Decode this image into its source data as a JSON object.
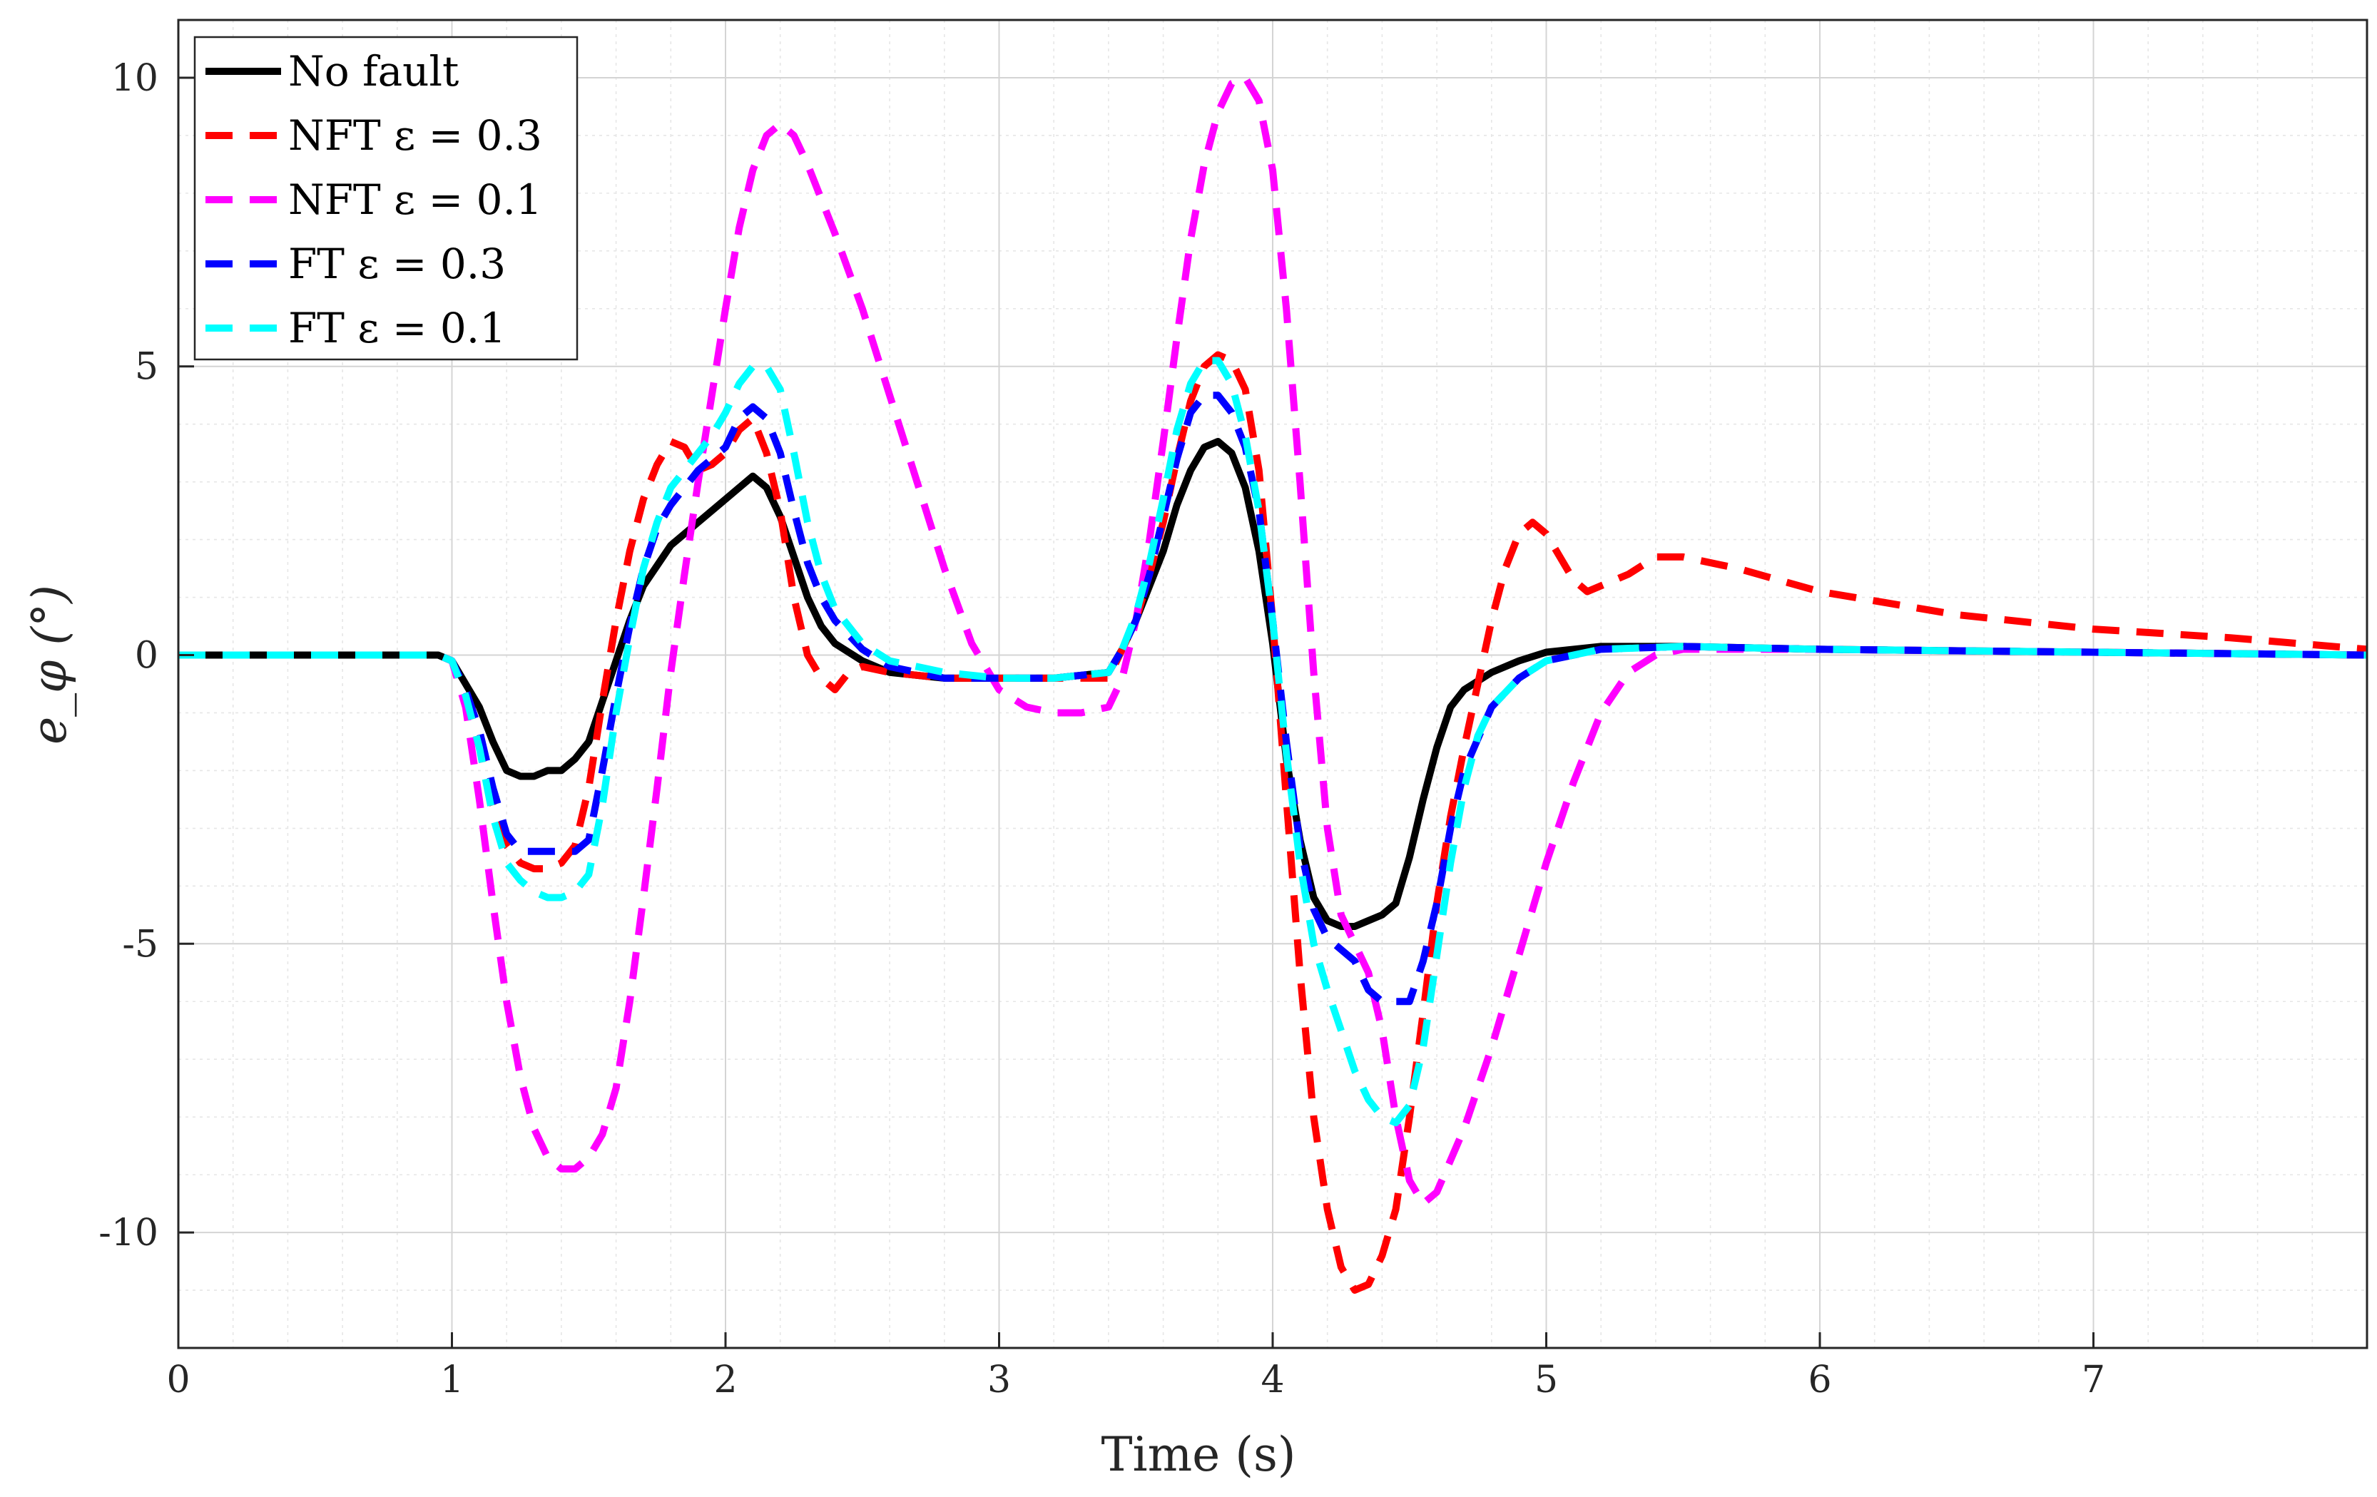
{
  "chart_data": {
    "type": "line",
    "xlabel": "Time (s)",
    "ylabel": "e_φ   (°)",
    "xlim": [
      0,
      8
    ],
    "ylim": [
      -12,
      11
    ],
    "xticks": [
      "0",
      "1",
      "2",
      "3",
      "4",
      "5",
      "6",
      "7"
    ],
    "yticks": [
      "10",
      "5",
      "0",
      "-5",
      "-10"
    ],
    "grid": true,
    "minor_grid": true,
    "legend_position": "top-left",
    "series": [
      {
        "name": "No fault",
        "color": "#000000",
        "style": "solid",
        "x": [
          0,
          0.95,
          1.0,
          1.05,
          1.1,
          1.15,
          1.2,
          1.25,
          1.3,
          1.35,
          1.4,
          1.45,
          1.5,
          1.55,
          1.6,
          1.65,
          1.7,
          1.8,
          1.9,
          2.0,
          2.05,
          2.1,
          2.15,
          2.2,
          2.25,
          2.3,
          2.35,
          2.4,
          2.5,
          2.6,
          2.8,
          3.0,
          3.2,
          3.4,
          3.45,
          3.5,
          3.55,
          3.6,
          3.65,
          3.7,
          3.75,
          3.8,
          3.85,
          3.9,
          3.95,
          4.0,
          4.05,
          4.1,
          4.15,
          4.2,
          4.25,
          4.3,
          4.35,
          4.4,
          4.45,
          4.5,
          4.55,
          4.6,
          4.65,
          4.7,
          4.8,
          4.9,
          5.0,
          5.2,
          5.5,
          6.0,
          7.0,
          8.0
        ],
        "y": [
          0,
          0,
          -0.1,
          -0.5,
          -0.9,
          -1.5,
          -2.0,
          -2.1,
          -2.1,
          -2.0,
          -2.0,
          -1.8,
          -1.5,
          -0.8,
          -0.1,
          0.6,
          1.2,
          1.9,
          2.3,
          2.7,
          2.9,
          3.1,
          2.9,
          2.4,
          1.7,
          1.0,
          0.5,
          0.2,
          -0.1,
          -0.3,
          -0.4,
          -0.4,
          -0.4,
          -0.3,
          0.1,
          0.6,
          1.2,
          1.8,
          2.6,
          3.2,
          3.6,
          3.7,
          3.5,
          2.9,
          1.8,
          0.2,
          -1.8,
          -3.2,
          -4.2,
          -4.6,
          -4.7,
          -4.7,
          -4.6,
          -4.5,
          -4.3,
          -3.5,
          -2.5,
          -1.6,
          -0.9,
          -0.6,
          -0.3,
          -0.1,
          0.05,
          0.15,
          0.15,
          0.1,
          0.05,
          0.0
        ]
      },
      {
        "name": "NFT ε = 0.3",
        "color": "#ff0000",
        "style": "dashed",
        "x": [
          0,
          0.95,
          1.0,
          1.05,
          1.1,
          1.15,
          1.2,
          1.25,
          1.3,
          1.35,
          1.4,
          1.45,
          1.5,
          1.55,
          1.6,
          1.65,
          1.7,
          1.75,
          1.8,
          1.85,
          1.9,
          1.95,
          2.0,
          2.05,
          2.1,
          2.15,
          2.2,
          2.25,
          2.3,
          2.35,
          2.4,
          2.45,
          2.5,
          2.6,
          2.8,
          3.0,
          3.2,
          3.4,
          3.45,
          3.5,
          3.55,
          3.6,
          3.65,
          3.7,
          3.75,
          3.8,
          3.85,
          3.9,
          3.95,
          4.0,
          4.05,
          4.1,
          4.15,
          4.2,
          4.25,
          4.3,
          4.35,
          4.4,
          4.45,
          4.5,
          4.55,
          4.6,
          4.65,
          4.7,
          4.75,
          4.8,
          4.85,
          4.9,
          4.95,
          5.0,
          5.05,
          5.1,
          5.15,
          5.2,
          5.3,
          5.4,
          5.5,
          5.7,
          6.0,
          6.5,
          7.0,
          7.5,
          8.0
        ],
        "y": [
          0,
          0,
          -0.1,
          -0.7,
          -1.6,
          -2.6,
          -3.3,
          -3.6,
          -3.7,
          -3.7,
          -3.6,
          -3.3,
          -2.3,
          -0.8,
          0.6,
          1.8,
          2.7,
          3.3,
          3.7,
          3.6,
          3.2,
          3.3,
          3.5,
          3.9,
          4.1,
          3.5,
          2.5,
          1.0,
          0.0,
          -0.4,
          -0.6,
          -0.3,
          -0.2,
          -0.3,
          -0.4,
          -0.4,
          -0.4,
          -0.4,
          0.1,
          0.6,
          1.4,
          2.3,
          3.4,
          4.4,
          5.0,
          5.2,
          5.1,
          4.6,
          3.2,
          0.6,
          -2.5,
          -5.5,
          -8.0,
          -9.6,
          -10.6,
          -11.0,
          -10.9,
          -10.4,
          -9.6,
          -8.0,
          -6.2,
          -4.3,
          -2.8,
          -1.6,
          -0.5,
          0.6,
          1.5,
          2.1,
          2.3,
          2.1,
          1.7,
          1.3,
          1.1,
          1.2,
          1.4,
          1.7,
          1.7,
          1.5,
          1.1,
          0.7,
          0.45,
          0.3,
          0.1
        ]
      },
      {
        "name": "NFT ε = 0.1",
        "color": "#ff00ff",
        "style": "dashed",
        "x": [
          0,
          0.95,
          1.0,
          1.05,
          1.1,
          1.15,
          1.2,
          1.25,
          1.3,
          1.35,
          1.4,
          1.45,
          1.5,
          1.55,
          1.6,
          1.65,
          1.7,
          1.75,
          1.8,
          1.85,
          1.9,
          1.95,
          2.0,
          2.05,
          2.1,
          2.15,
          2.2,
          2.25,
          2.3,
          2.4,
          2.5,
          2.6,
          2.7,
          2.8,
          2.9,
          3.0,
          3.1,
          3.2,
          3.3,
          3.4,
          3.45,
          3.5,
          3.55,
          3.6,
          3.65,
          3.7,
          3.75,
          3.8,
          3.85,
          3.9,
          3.95,
          4.0,
          4.05,
          4.1,
          4.15,
          4.2,
          4.25,
          4.3,
          4.35,
          4.4,
          4.45,
          4.5,
          4.55,
          4.6,
          4.7,
          4.8,
          4.9,
          5.0,
          5.1,
          5.2,
          5.3,
          5.4,
          5.5,
          5.7,
          6.0,
          7.0,
          8.0
        ],
        "y": [
          0,
          0,
          -0.1,
          -0.9,
          -2.5,
          -4.3,
          -6.0,
          -7.3,
          -8.2,
          -8.7,
          -8.9,
          -8.9,
          -8.7,
          -8.3,
          -7.5,
          -6.0,
          -4.2,
          -2.3,
          -0.3,
          1.4,
          3.0,
          4.5,
          6.0,
          7.4,
          8.4,
          9.0,
          9.2,
          9.0,
          8.5,
          7.3,
          6.0,
          4.5,
          3.0,
          1.5,
          0.2,
          -0.6,
          -0.9,
          -1.0,
          -1.0,
          -0.9,
          -0.4,
          0.6,
          2.0,
          3.7,
          5.5,
          7.2,
          8.5,
          9.4,
          9.9,
          10.0,
          9.6,
          8.4,
          6.0,
          3.0,
          -0.3,
          -3.0,
          -4.5,
          -5.0,
          -5.5,
          -6.5,
          -8.0,
          -9.1,
          -9.5,
          -9.3,
          -8.2,
          -6.8,
          -5.2,
          -3.6,
          -2.2,
          -1.0,
          -0.3,
          0.0,
          0.1,
          0.1,
          0.1,
          0.05,
          0.0
        ]
      },
      {
        "name": "FT ε = 0.3",
        "color": "#0000ff",
        "style": "dashed",
        "x": [
          0,
          0.95,
          1.0,
          1.05,
          1.1,
          1.15,
          1.2,
          1.25,
          1.3,
          1.35,
          1.4,
          1.45,
          1.5,
          1.55,
          1.6,
          1.65,
          1.7,
          1.75,
          1.8,
          1.85,
          1.9,
          1.95,
          2.0,
          2.05,
          2.1,
          2.15,
          2.2,
          2.25,
          2.3,
          2.35,
          2.4,
          2.5,
          2.6,
          2.8,
          3.0,
          3.2,
          3.4,
          3.45,
          3.5,
          3.55,
          3.6,
          3.65,
          3.7,
          3.75,
          3.8,
          3.85,
          3.9,
          3.95,
          4.0,
          4.05,
          4.1,
          4.15,
          4.2,
          4.25,
          4.3,
          4.35,
          4.4,
          4.45,
          4.5,
          4.55,
          4.6,
          4.65,
          4.7,
          4.8,
          4.9,
          5.0,
          5.2,
          5.5,
          6.0,
          7.0,
          8.0
        ],
        "y": [
          0,
          0,
          -0.1,
          -0.6,
          -1.3,
          -2.3,
          -3.1,
          -3.4,
          -3.4,
          -3.4,
          -3.4,
          -3.4,
          -3.2,
          -2.0,
          -0.7,
          0.5,
          1.5,
          2.2,
          2.6,
          2.9,
          3.2,
          3.4,
          3.6,
          4.1,
          4.3,
          4.1,
          3.5,
          2.5,
          1.6,
          1.0,
          0.6,
          0.1,
          -0.2,
          -0.4,
          -0.4,
          -0.4,
          -0.3,
          0.1,
          0.6,
          1.4,
          2.4,
          3.4,
          4.2,
          4.5,
          4.5,
          4.2,
          3.6,
          2.5,
          0.6,
          -1.5,
          -3.3,
          -4.4,
          -4.9,
          -5.1,
          -5.3,
          -5.8,
          -6.0,
          -6.0,
          -6.0,
          -5.3,
          -4.3,
          -3.0,
          -2.0,
          -0.9,
          -0.4,
          -0.1,
          0.1,
          0.15,
          0.1,
          0.05,
          0.0
        ]
      },
      {
        "name": "FT ε = 0.1",
        "color": "#00ffff",
        "style": "dashed",
        "x": [
          0,
          0.95,
          1.0,
          1.05,
          1.1,
          1.15,
          1.2,
          1.25,
          1.3,
          1.35,
          1.4,
          1.45,
          1.5,
          1.55,
          1.6,
          1.65,
          1.7,
          1.75,
          1.8,
          1.85,
          1.9,
          1.95,
          2.0,
          2.05,
          2.1,
          2.15,
          2.2,
          2.25,
          2.3,
          2.35,
          2.4,
          2.5,
          2.6,
          2.8,
          3.0,
          3.2,
          3.4,
          3.45,
          3.5,
          3.55,
          3.6,
          3.65,
          3.7,
          3.75,
          3.8,
          3.85,
          3.9,
          3.95,
          4.0,
          4.05,
          4.1,
          4.15,
          4.2,
          4.25,
          4.3,
          4.35,
          4.4,
          4.45,
          4.5,
          4.55,
          4.6,
          4.65,
          4.7,
          4.75,
          4.8,
          4.9,
          5.0,
          5.2,
          5.5,
          6.0,
          7.0,
          8.0
        ],
        "y": [
          0,
          0,
          -0.1,
          -0.7,
          -1.6,
          -2.8,
          -3.6,
          -3.9,
          -4.1,
          -4.2,
          -4.2,
          -4.1,
          -3.8,
          -2.6,
          -1.0,
          0.3,
          1.5,
          2.3,
          2.9,
          3.2,
          3.5,
          3.8,
          4.2,
          4.7,
          5.0,
          5.0,
          4.6,
          3.5,
          2.3,
          1.4,
          0.8,
          0.2,
          -0.1,
          -0.3,
          -0.4,
          -0.4,
          -0.3,
          0.1,
          0.7,
          1.6,
          2.7,
          3.9,
          4.7,
          5.1,
          5.1,
          4.7,
          3.8,
          2.5,
          0.6,
          -1.7,
          -3.6,
          -5.0,
          -5.8,
          -6.5,
          -7.2,
          -7.7,
          -8.0,
          -8.1,
          -7.8,
          -6.8,
          -5.2,
          -3.6,
          -2.3,
          -1.4,
          -0.9,
          -0.4,
          -0.1,
          0.1,
          0.15,
          0.1,
          0.05,
          0.0
        ]
      }
    ]
  }
}
